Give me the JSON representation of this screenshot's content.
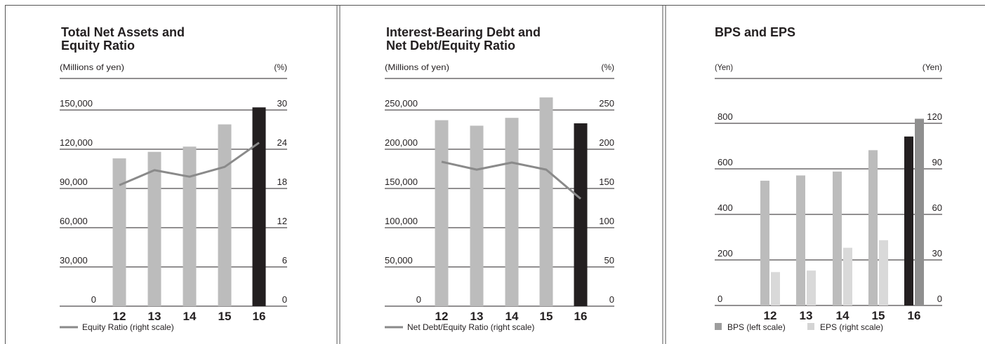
{
  "chart_data": [
    {
      "type": "bar",
      "title": "Total Net Assets and Equity Ratio",
      "title_lines": [
        "Total Net Assets and",
        "Equity Ratio"
      ],
      "left_unit": "(Millions of yen)",
      "right_unit": "(%)",
      "categories": [
        "12",
        "13",
        "14",
        "15",
        "16"
      ],
      "left_ticks": [
        "0",
        "30,000",
        "60,000",
        "90,000",
        "120,000",
        "150,000"
      ],
      "right_ticks": [
        "0",
        "6",
        "12",
        "18",
        "24",
        "30"
      ],
      "ylim_left": [
        0,
        150000
      ],
      "ylim_right": [
        0,
        30
      ],
      "series": [
        {
          "name": "Total Net Assets",
          "kind": "bar",
          "axis": "left",
          "values": [
            113000,
            118000,
            122000,
            139000,
            152000
          ],
          "highlight_last": true
        },
        {
          "name": "Equity Ratio (right scale)",
          "kind": "line",
          "axis": "right",
          "values": [
            18.5,
            20.8,
            19.8,
            21.3,
            25.0
          ]
        }
      ],
      "legend": [
        {
          "label": "Equity Ratio (right scale)",
          "type": "line",
          "color": "#8a8a8a"
        }
      ]
    },
    {
      "type": "bar",
      "title": "Interest-Bearing Debt and Net Debt/Equity Ratio",
      "title_lines": [
        "Interest-Bearing Debt and",
        "Net Debt/Equity Ratio"
      ],
      "left_unit": "(Millions of yen)",
      "right_unit": "(%)",
      "categories": [
        "12",
        "13",
        "14",
        "15",
        "16"
      ],
      "left_ticks": [
        "0",
        "50,000",
        "100,000",
        "150,000",
        "200,000",
        "250,000"
      ],
      "right_ticks": [
        "0",
        "50",
        "100",
        "150",
        "200",
        "250"
      ],
      "ylim_left": [
        0,
        250000
      ],
      "ylim_right": [
        0,
        250
      ],
      "series": [
        {
          "name": "Interest-Bearing Debt",
          "kind": "bar",
          "axis": "left",
          "values": [
            237000,
            230000,
            240000,
            266000,
            233000
          ],
          "highlight_last": true
        },
        {
          "name": "Net Debt/Equity Ratio (right scale)",
          "kind": "line",
          "axis": "right",
          "values": [
            184,
            174,
            183,
            174,
            137
          ]
        }
      ],
      "legend": [
        {
          "label": "Net Debt/Equity Ratio (right scale)",
          "type": "line",
          "color": "#8a8a8a"
        }
      ]
    },
    {
      "type": "bar",
      "title": "BPS and EPS",
      "title_lines": [
        "BPS and EPS"
      ],
      "left_unit": "(Yen)",
      "right_unit": "(Yen)",
      "categories": [
        "12",
        "13",
        "14",
        "15",
        "16"
      ],
      "left_ticks": [
        "0",
        "200",
        "400",
        "600",
        "800"
      ],
      "right_ticks": [
        "0",
        "30",
        "60",
        "90",
        "120"
      ],
      "ylim_left": [
        0,
        800
      ],
      "ylim_right": [
        0,
        120
      ],
      "series": [
        {
          "name": "BPS (left scale)",
          "kind": "bar",
          "axis": "left",
          "values": [
            548,
            571,
            588,
            682,
            742
          ],
          "highlight_last": true
        },
        {
          "name": "EPS (right scale)",
          "kind": "bar",
          "axis": "right",
          "values": [
            22,
            23,
            38,
            43,
            123
          ],
          "highlight_last": true
        }
      ],
      "legend": [
        {
          "label": "BPS (left scale)",
          "type": "box",
          "color": "#9d9d9d"
        },
        {
          "label": "EPS (right scale)",
          "type": "box",
          "color": "#d4d4d4"
        }
      ]
    }
  ],
  "colors": {
    "bar": "#bcbcbc",
    "bar_highlight": "#231f20",
    "eps_bar": "#d9d9d9",
    "eps_highlight": "#8f8f8f",
    "line": "#8a8a8a",
    "rule": "#231f20"
  }
}
